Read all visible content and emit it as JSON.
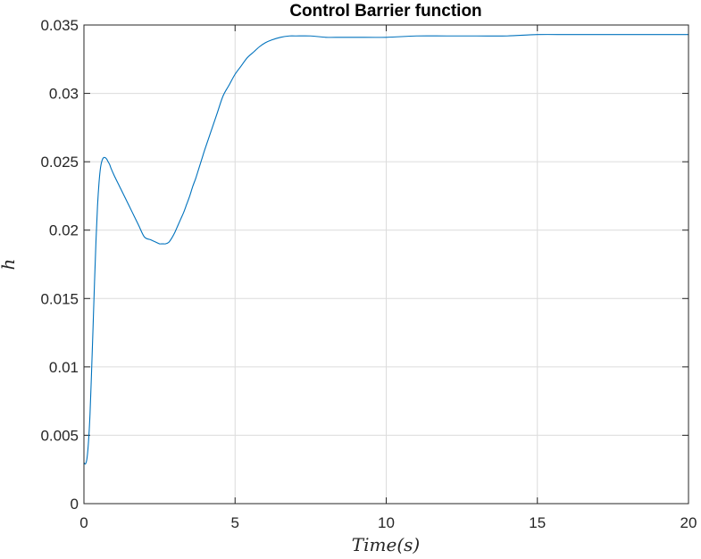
{
  "chart_data": {
    "type": "line",
    "title": "Control Barrier function",
    "xlabel": "Time(s)",
    "ylabel": "h",
    "xlim": [
      0,
      20
    ],
    "ylim": [
      0,
      0.035
    ],
    "xticks": [
      0,
      5,
      10,
      15,
      20
    ],
    "xtick_labels": [
      "0",
      "5",
      "10",
      "15",
      "20"
    ],
    "yticks": [
      0,
      0.005,
      0.01,
      0.015,
      0.02,
      0.025,
      0.03,
      0.035
    ],
    "ytick_labels": [
      "0",
      "0.005",
      "0.01",
      "0.015",
      "0.02",
      "0.025",
      "0.03",
      "0.035"
    ],
    "grid": true,
    "line_color": "#0072bd",
    "series": [
      {
        "x": [
          0,
          0.05,
          0.1,
          0.15,
          0.2,
          0.25,
          0.3,
          0.35,
          0.4,
          0.45,
          0.5,
          0.55,
          0.6,
          0.65,
          0.7,
          0.75,
          0.8,
          0.85,
          0.9,
          1.0,
          1.2,
          1.4,
          1.6,
          1.8,
          2.0,
          2.2,
          2.4,
          2.5,
          2.6,
          2.7,
          2.8,
          2.9,
          3.0,
          3.1,
          3.2,
          3.3,
          3.4,
          3.5,
          3.6,
          3.7,
          3.8,
          3.9,
          4.0,
          4.2,
          4.4,
          4.6,
          4.8,
          5.0,
          5.2,
          5.4,
          5.6,
          5.8,
          6.0,
          6.2,
          6.5,
          6.8,
          7.0,
          7.5,
          8.0,
          8.5,
          9.0,
          10.0,
          11.0,
          12.0,
          13.0,
          14.0,
          15.0,
          16.0,
          17.0,
          18.0,
          19.0,
          20.0
        ],
        "y": [
          0.003,
          0.0029,
          0.0033,
          0.0045,
          0.0065,
          0.0095,
          0.0128,
          0.0162,
          0.0193,
          0.0218,
          0.0235,
          0.0246,
          0.0251,
          0.0253,
          0.0253,
          0.0252,
          0.025,
          0.0248,
          0.0245,
          0.024,
          0.0231,
          0.0222,
          0.0213,
          0.0204,
          0.0195,
          0.0193,
          0.0191,
          0.019,
          0.019,
          0.019,
          0.0191,
          0.0194,
          0.0198,
          0.0203,
          0.0208,
          0.0213,
          0.0219,
          0.0225,
          0.0232,
          0.0238,
          0.0245,
          0.0252,
          0.0259,
          0.0272,
          0.0285,
          0.0298,
          0.0306,
          0.0314,
          0.032,
          0.0326,
          0.033,
          0.0334,
          0.0337,
          0.0339,
          0.0341,
          0.0342,
          0.0342,
          0.0342,
          0.0341,
          0.0341,
          0.0341,
          0.0341,
          0.0342,
          0.0342,
          0.0342,
          0.0342,
          0.0343,
          0.0343,
          0.0343,
          0.0343,
          0.0343,
          0.0343
        ]
      }
    ]
  }
}
